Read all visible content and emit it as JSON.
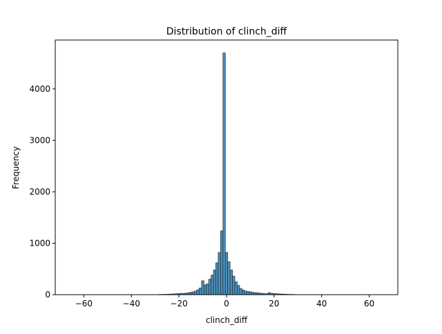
{
  "chart_data": {
    "type": "bar",
    "title": "Distribution of clinch_diff",
    "xlabel": "clinch_diff",
    "ylabel": "Frequency",
    "xlim": [
      -72,
      72
    ],
    "ylim": [
      0,
      4950
    ],
    "x_ticks": [
      -60,
      -40,
      -20,
      0,
      20,
      40,
      60
    ],
    "x_tick_labels": [
      "−60",
      "−40",
      "−20",
      "0",
      "20",
      "40",
      "60"
    ],
    "y_ticks": [
      0,
      1000,
      2000,
      3000,
      4000
    ],
    "y_tick_labels": [
      "0",
      "1000",
      "2000",
      "3000",
      "4000"
    ],
    "grid": false,
    "bar_color": "#4c8fba",
    "edge_color": "#1f2a33",
    "bins": {
      "x": [
        -28,
        -27,
        -26,
        -25,
        -24,
        -23,
        -22,
        -21,
        -20,
        -19,
        -18,
        -17,
        -16,
        -15,
        -14,
        -13,
        -12,
        -11,
        -10,
        -9,
        -8,
        -7,
        -6,
        -5,
        -4,
        -3,
        -2,
        -1,
        0,
        1,
        2,
        3,
        4,
        5,
        6,
        7,
        8,
        9,
        10,
        11,
        12,
        13,
        14,
        15,
        16,
        17,
        18,
        19,
        20,
        21,
        22,
        23,
        24,
        25,
        26,
        27,
        28
      ],
      "values": [
        5,
        5,
        6,
        8,
        10,
        12,
        14,
        18,
        20,
        25,
        22,
        30,
        35,
        45,
        55,
        70,
        95,
        130,
        270,
        190,
        210,
        300,
        380,
        480,
        620,
        820,
        1240,
        4700,
        820,
        640,
        480,
        360,
        250,
        180,
        120,
        90,
        70,
        60,
        55,
        45,
        40,
        35,
        30,
        25,
        20,
        18,
        40,
        25,
        20,
        18,
        15,
        12,
        10,
        8,
        6,
        5,
        5
      ]
    }
  }
}
